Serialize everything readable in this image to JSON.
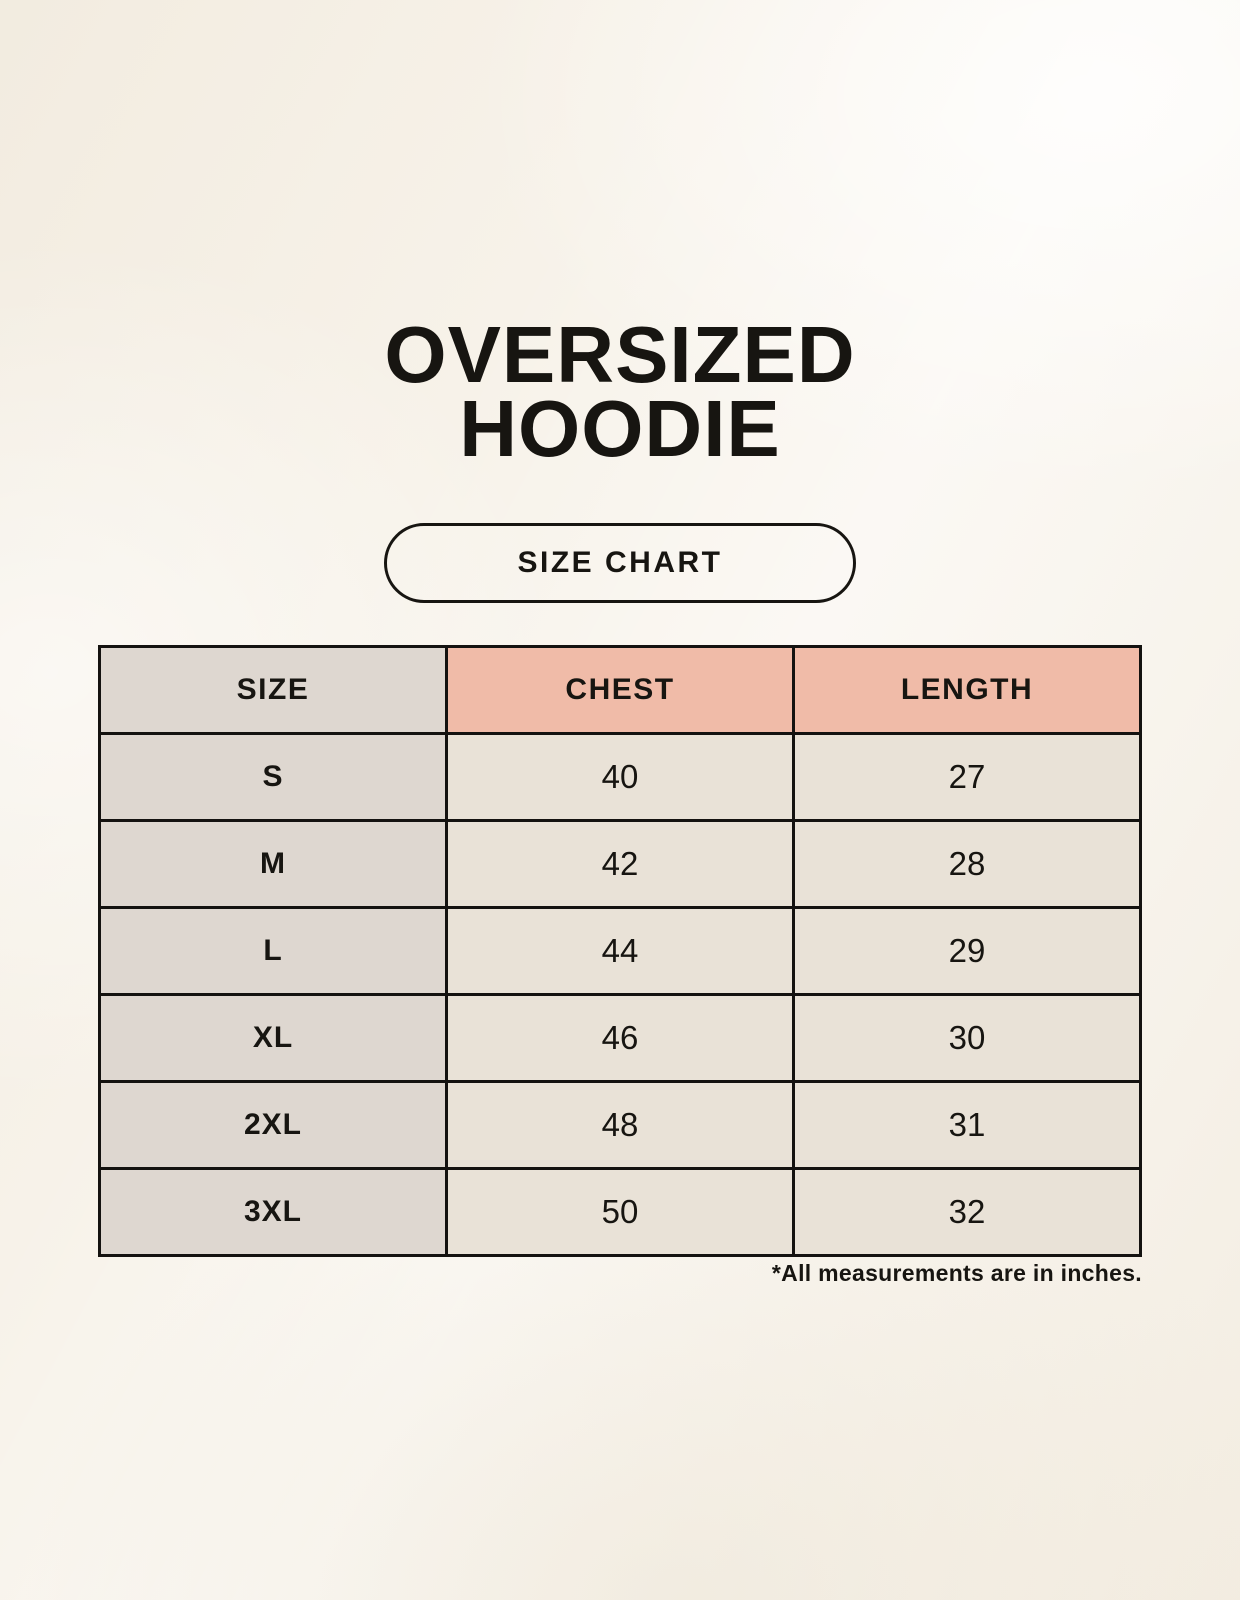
{
  "page": {
    "title_line1": "OVERSIZED",
    "title_line2": "HOODIE",
    "badge_label": "SIZE CHART",
    "footnote": "*All measurements are in inches."
  },
  "chart_data": {
    "type": "table",
    "title": "Oversized Hoodie Size Chart",
    "columns": [
      "SIZE",
      "CHEST",
      "LENGTH"
    ],
    "rows": [
      [
        "S",
        "40",
        "27"
      ],
      [
        "M",
        "42",
        "28"
      ],
      [
        "L",
        "44",
        "29"
      ],
      [
        "XL",
        "46",
        "30"
      ],
      [
        "2XL",
        "48",
        "31"
      ],
      [
        "3XL",
        "50",
        "32"
      ]
    ],
    "units": "inches"
  },
  "colors": {
    "bg": "#f7f2e9",
    "ink": "#171511",
    "line": "#141210",
    "pink": "#f0bba8",
    "gray": "#ded7d0",
    "beige": "#e9e2d7"
  }
}
